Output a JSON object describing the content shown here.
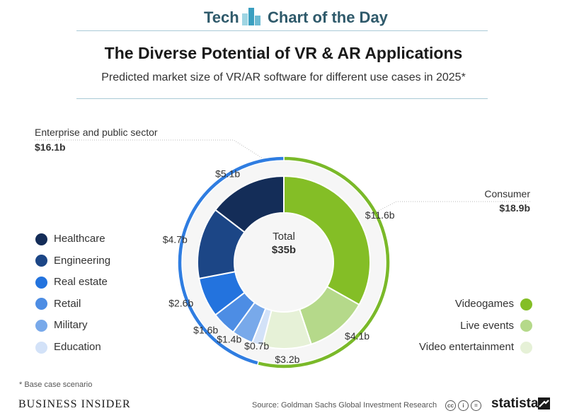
{
  "header": {
    "brand": "Tech",
    "series": "Chart of the Day"
  },
  "title": "The Diverse Potential of VR & AR Applications",
  "subtitle": "Predicted market size of VR/AR software for different use cases in 2025*",
  "chart_data": {
    "type": "pie",
    "variant": "nested-donut",
    "title": "The Diverse Potential of VR & AR Applications",
    "subtitle": "Predicted market size of VR/AR software for different use cases in 2025*",
    "unit": "$ billion",
    "total": {
      "label": "Total",
      "value_label": "$35b",
      "value": 35
    },
    "groups": [
      {
        "name": "Consumer",
        "value": 18.9,
        "value_label": "$18.9b",
        "color": "#7ab929"
      },
      {
        "name": "Enterprise and public sector",
        "value": 16.1,
        "value_label": "$16.1b",
        "color": "#2f7de1"
      }
    ],
    "slices": [
      {
        "name": "Videogames",
        "group": "Consumer",
        "value": 11.6,
        "label": "$11.6b",
        "color": "#84be26"
      },
      {
        "name": "Live events",
        "group": "Consumer",
        "value": 4.1,
        "label": "$4.1b",
        "color": "#b5d98a"
      },
      {
        "name": "Video entertainment",
        "group": "Consumer",
        "value": 3.2,
        "label": "$3.2b",
        "color": "#e6f1d7"
      },
      {
        "name": "Education",
        "group": "Enterprise and public sector",
        "value": 0.7,
        "label": "$0.7b",
        "color": "#d3e2f8"
      },
      {
        "name": "Military",
        "group": "Enterprise and public sector",
        "value": 1.4,
        "label": "$1.4b",
        "color": "#78a9ea"
      },
      {
        "name": "Retail",
        "group": "Enterprise and public sector",
        "value": 1.6,
        "label": "$1.6b",
        "color": "#4d8de4"
      },
      {
        "name": "Real estate",
        "group": "Enterprise and public sector",
        "value": 2.6,
        "label": "$2.6b",
        "color": "#2373de"
      },
      {
        "name": "Engineering",
        "group": "Enterprise and public sector",
        "value": 4.7,
        "label": "$4.7b",
        "color": "#1c4686"
      },
      {
        "name": "Healthcare",
        "group": "Enterprise and public sector",
        "value": 5.1,
        "label": "$5.1b",
        "color": "#142d58"
      }
    ],
    "legend_left": [
      "Healthcare",
      "Engineering",
      "Real estate",
      "Retail",
      "Military",
      "Education"
    ],
    "legend_right": [
      "Videogames",
      "Live events",
      "Video entertainment"
    ]
  },
  "footnote": "* Base case scenario",
  "footer": {
    "publisher": "BUSINESS INSIDER",
    "source": "Source: Goldman Sachs Global Investment Research",
    "license_icons": [
      "cc",
      "i",
      "="
    ],
    "brand": "statista"
  }
}
